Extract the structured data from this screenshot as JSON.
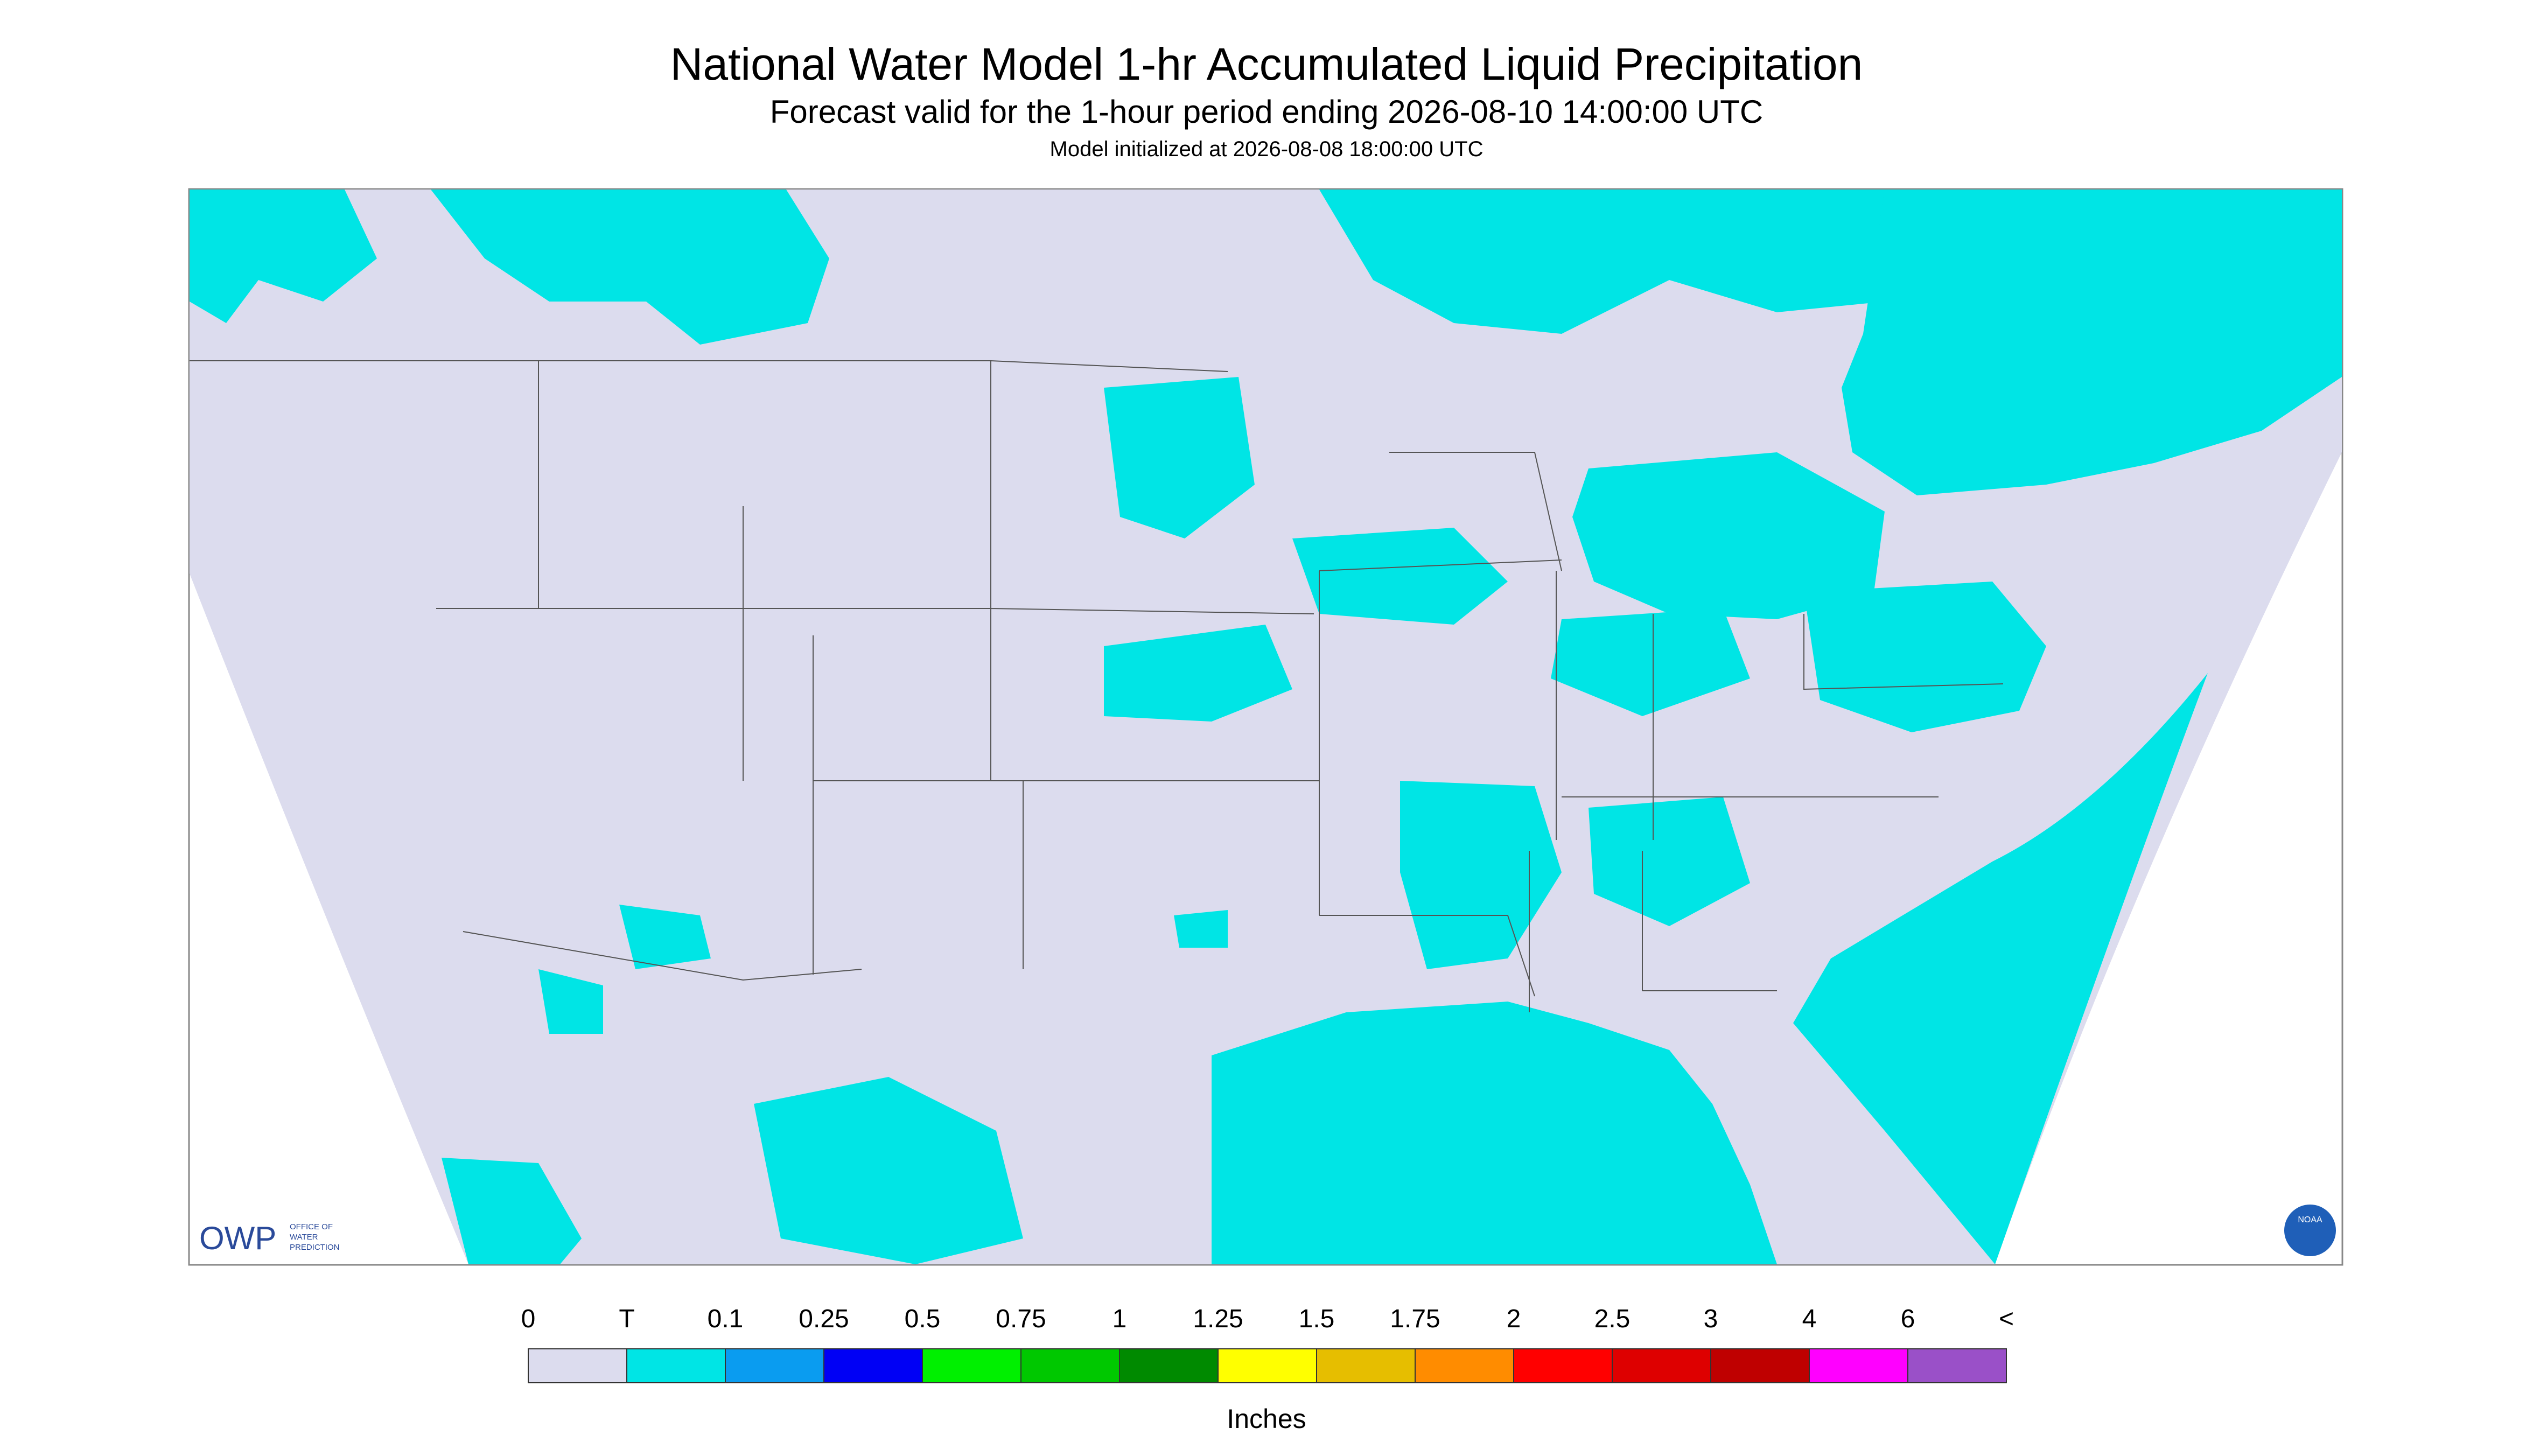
{
  "header": {
    "title": "National Water Model 1-hr Accumulated Liquid Precipitation",
    "subtitle": "Forecast valid for the 1-hour period ending 2026-08-10 14:00:00 UTC",
    "initialized": "Model initialized at 2026-08-08 18:00:00 UTC"
  },
  "logos": {
    "owp": "OWP",
    "owp_text": [
      "OFFICE OF",
      "WATER",
      "PREDICTION"
    ],
    "noaa": "NOAA"
  },
  "legend": {
    "labels": [
      "0",
      "T",
      "0.1",
      "0.25",
      "0.5",
      "0.75",
      "1",
      "1.25",
      "1.5",
      "1.75",
      "2",
      "2.5",
      "3",
      "4",
      "6",
      "<"
    ],
    "colors": [
      "#dcdcee",
      "#00e5e5",
      "#0a9cf0",
      "#0000f5",
      "#00f000",
      "#00c800",
      "#008a00",
      "#ffff00",
      "#e6be00",
      "#ff8c00",
      "#ff0000",
      "#de0000",
      "#bf0000",
      "#ff00ff",
      "#9a50c8"
    ],
    "unit": "Inches"
  }
}
